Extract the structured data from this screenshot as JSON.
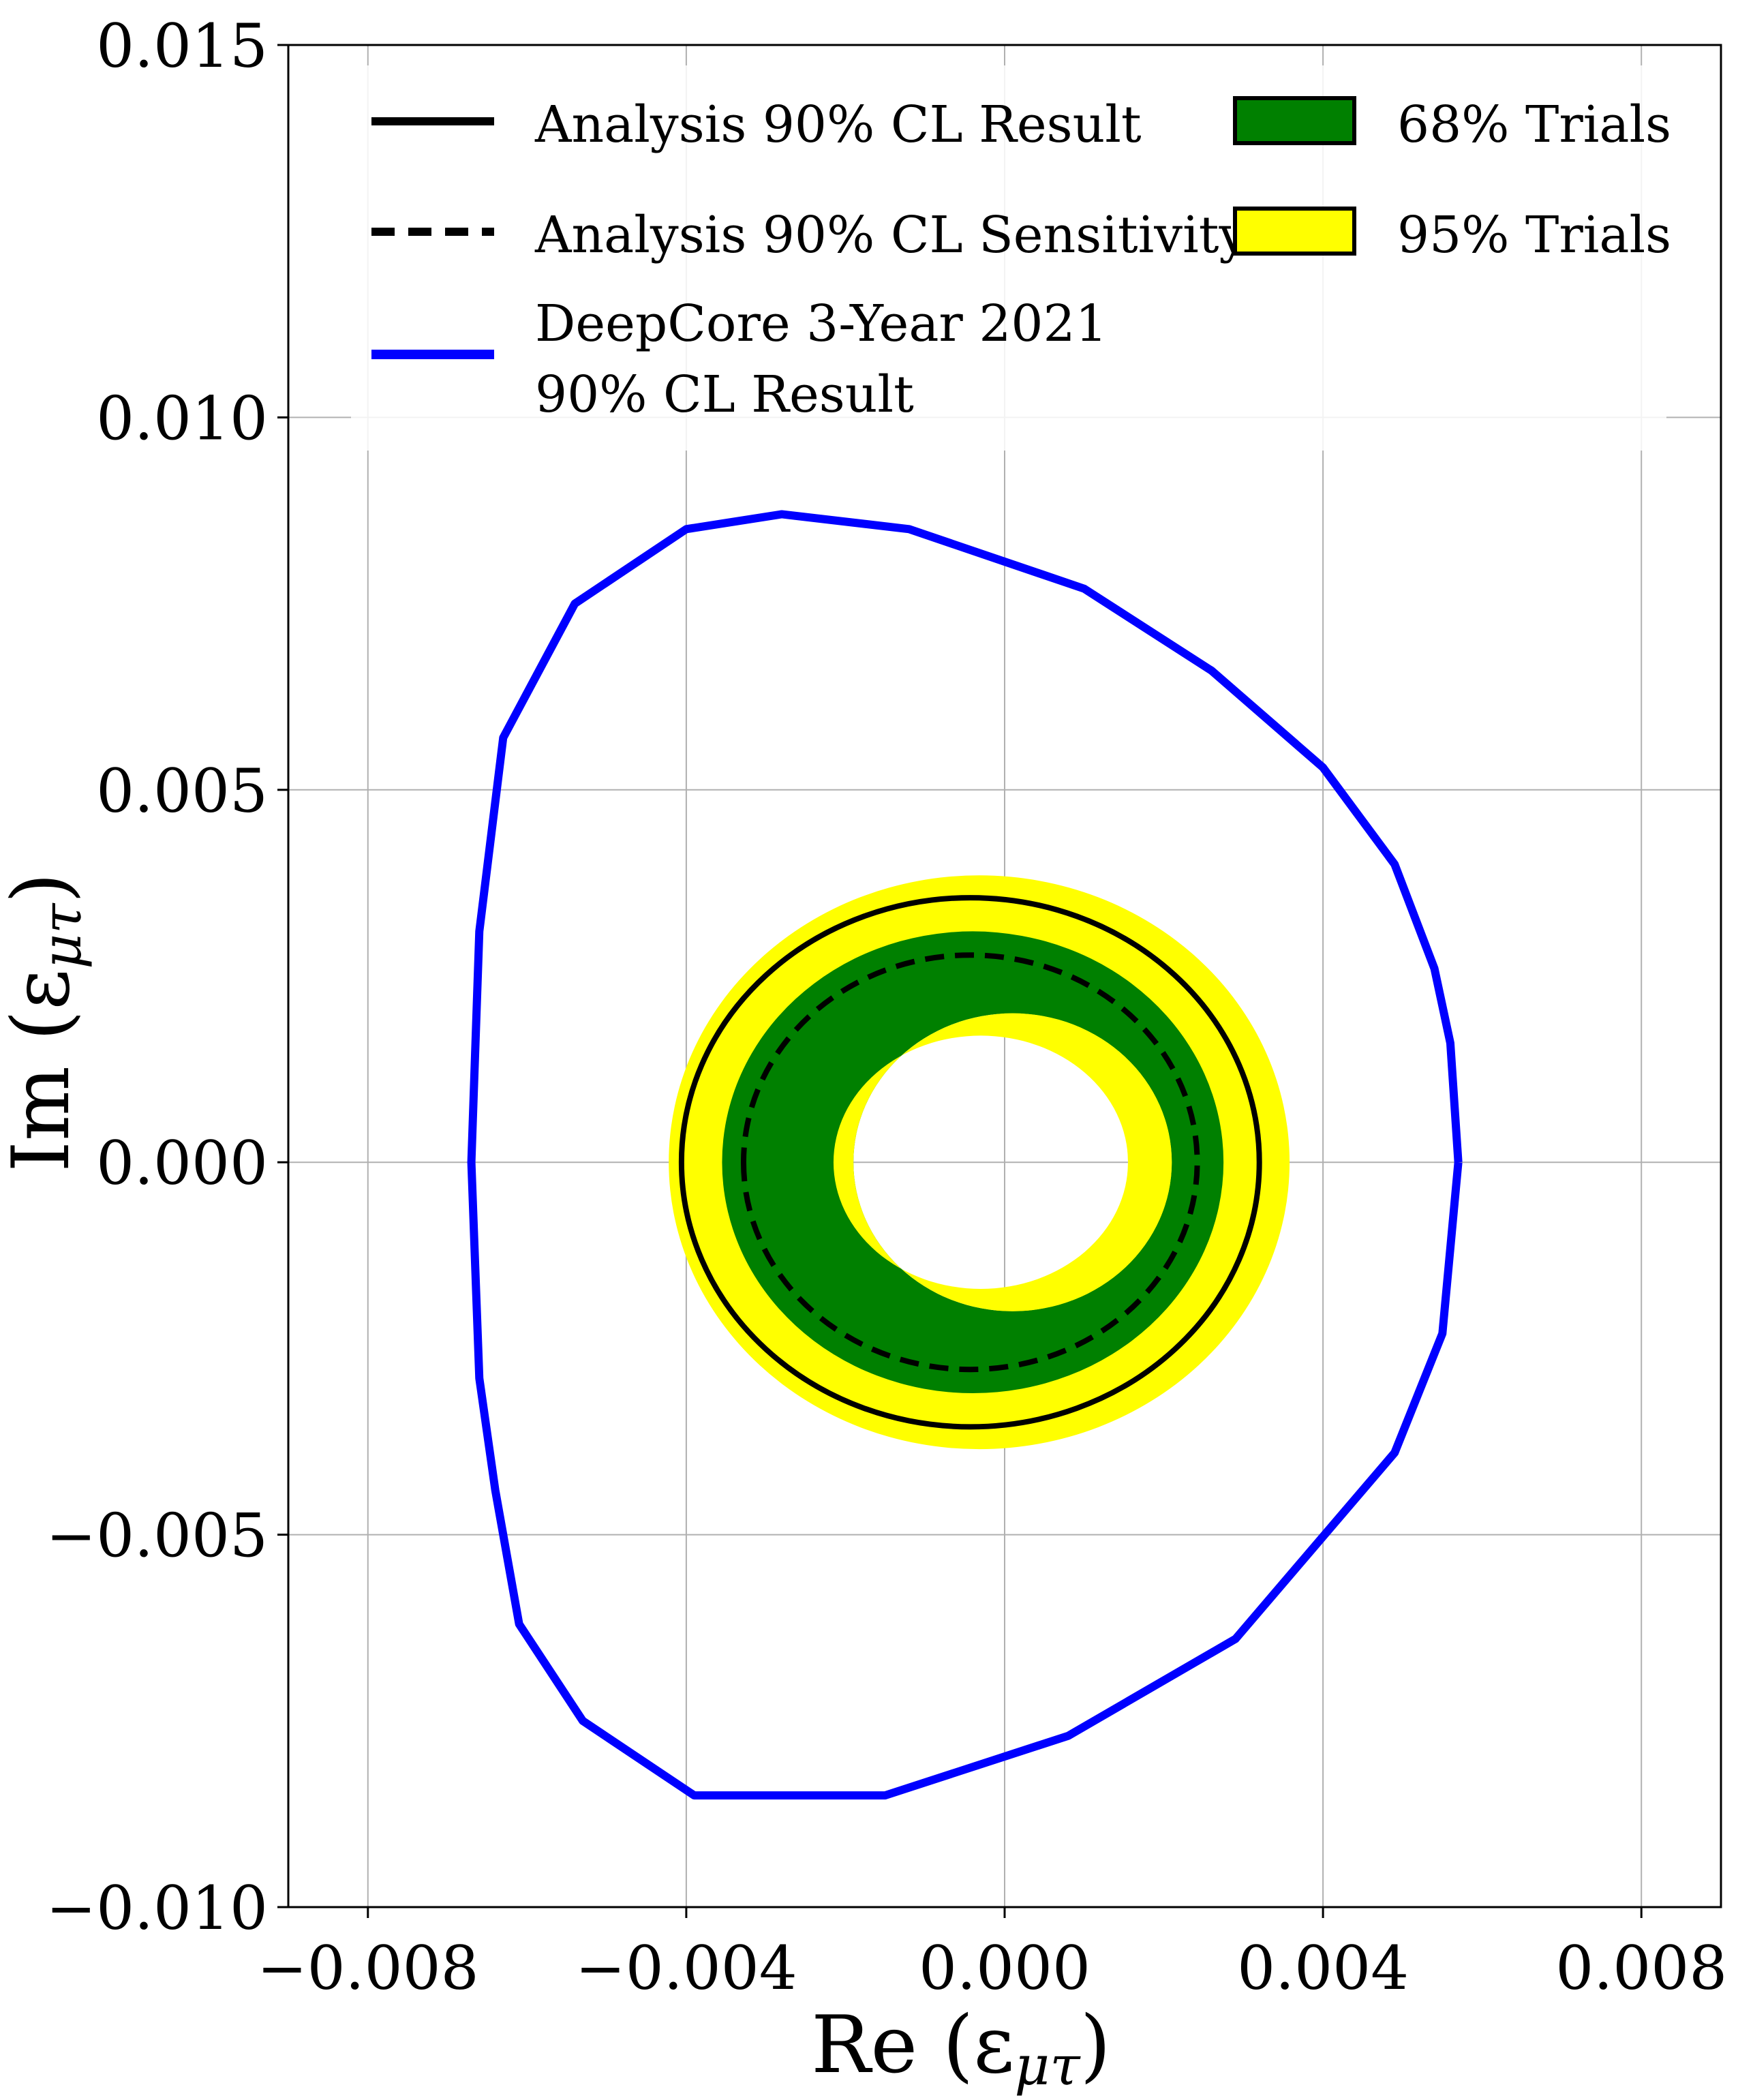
{
  "chart_data": {
    "type": "line",
    "xlabel": "Re (ε",
    "xlabel_sub": "μτ",
    "ylabel": "Im (ε",
    "ylabel_sub": "μτ",
    "xlim": [
      -0.009,
      0.009
    ],
    "ylim": [
      -0.01,
      0.015
    ],
    "grid": true,
    "legend_position": "top",
    "xticks": [
      {
        "value": -0.008,
        "label": "−0.008"
      },
      {
        "value": -0.004,
        "label": "−0.004"
      },
      {
        "value": 0.0,
        "label": "0.000"
      },
      {
        "value": 0.004,
        "label": "0.004"
      },
      {
        "value": 0.008,
        "label": "0.008"
      }
    ],
    "yticks": [
      {
        "value": -0.01,
        "label": "−0.010"
      },
      {
        "value": -0.005,
        "label": "−0.005"
      },
      {
        "value": 0.0,
        "label": "0.000"
      },
      {
        "value": 0.005,
        "label": "0.005"
      },
      {
        "value": 0.01,
        "label": "0.010"
      },
      {
        "value": 0.015,
        "label": "0.015"
      }
    ],
    "bands": [
      {
        "name": "95% Trials",
        "color": "#ffff00",
        "outer": {
          "cx": -0.00032,
          "cy": 0.0,
          "rx": 0.0039,
          "ry": 0.00385
        },
        "inner": {
          "cx": -0.0003,
          "cy": 0.0,
          "rx": 0.00185,
          "ry": 0.002
        }
      },
      {
        "name": "68% Trials",
        "color": "#008000",
        "outer": {
          "cx": -0.0004,
          "cy": 0.0,
          "rx": 0.00315,
          "ry": 0.0031
        },
        "inner": {
          "cx": 0.0001,
          "cy": 0.0,
          "rx": 0.002,
          "ry": 0.002
        }
      },
      {
        "name": "95% Trials inner",
        "color": "#ffff00",
        "outer": {
          "cx": 0.0001,
          "cy": 0.0,
          "rx": 0.002,
          "ry": 0.002
        },
        "inner": {
          "cx": -0.0003,
          "cy": 0.0,
          "rx": 0.00185,
          "ry": 0.0017
        }
      }
    ],
    "series": [
      {
        "name": "Analysis 90% CL Result",
        "color": "#000000",
        "style": "solid",
        "width": 8,
        "ellipse": {
          "cx": -0.00043,
          "cy": 0.0,
          "rx": 0.00363,
          "ry": 0.00355
        }
      },
      {
        "name": "Analysis 90% CL Sensitivity",
        "color": "#000000",
        "style": "dashed",
        "width": 8,
        "ellipse": {
          "cx": -0.00043,
          "cy": 0.0,
          "rx": 0.00285,
          "ry": 0.00278
        }
      },
      {
        "name": "DeepCore 3-Year 2021 90% CL Result",
        "color": "#0000ff",
        "style": "solid",
        "width": 12,
        "points": [
          [
            0.0057,
            0.0
          ],
          [
            0.0056,
            0.0016
          ],
          [
            0.0054,
            0.0026
          ],
          [
            0.0049,
            0.004
          ],
          [
            0.004,
            0.0053
          ],
          [
            0.0026,
            0.0066
          ],
          [
            0.001,
            0.0077
          ],
          [
            -0.0012,
            0.0085
          ],
          [
            -0.0028,
            0.0087
          ],
          [
            -0.004,
            0.0085
          ],
          [
            -0.0054,
            0.0075
          ],
          [
            -0.0063,
            0.0057
          ],
          [
            -0.0066,
            0.0031
          ],
          [
            -0.0067,
            0.0
          ],
          [
            -0.0066,
            -0.0029
          ],
          [
            -0.0064,
            -0.0044
          ],
          [
            -0.0061,
            -0.0062
          ],
          [
            -0.0053,
            -0.0075
          ],
          [
            -0.0039,
            -0.0085
          ],
          [
            -0.0015,
            -0.0085
          ],
          [
            0.0008,
            -0.0077
          ],
          [
            0.0029,
            -0.0064
          ],
          [
            0.0049,
            -0.0039
          ],
          [
            0.0055,
            -0.0023
          ],
          [
            0.0057,
            0.0
          ]
        ]
      }
    ],
    "legend": {
      "entries": [
        {
          "label": "Analysis 90% CL Result",
          "kind": "line",
          "color": "#000000",
          "dashed": false
        },
        {
          "label": "Analysis 90% CL Sensitivity",
          "kind": "line",
          "color": "#000000",
          "dashed": true
        },
        {
          "label": "DeepCore 3-Year 2021",
          "label2": "90% CL Result",
          "kind": "line",
          "color": "#0000ff",
          "dashed": false
        },
        {
          "label": "68% Trials",
          "kind": "patch",
          "color": "#008000"
        },
        {
          "label": "95% Trials",
          "kind": "patch",
          "color": "#ffff00"
        }
      ]
    }
  }
}
